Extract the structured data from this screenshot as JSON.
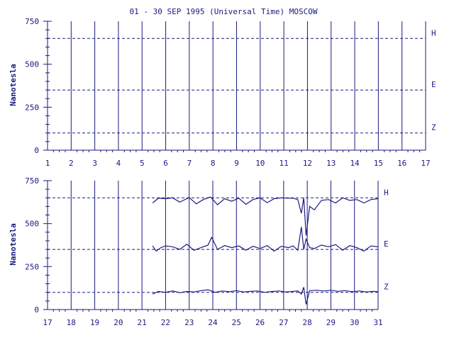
{
  "chart_data": [
    {
      "type": "line",
      "title": "01 - 30 SEP 1995 (Universal Time) MOSCOW",
      "ylabel": "Nanotesla",
      "x_ticks": [
        "1",
        "2",
        "3",
        "4",
        "5",
        "6",
        "7",
        "8",
        "9",
        "10",
        "11",
        "12",
        "13",
        "14",
        "15",
        "16",
        "17"
      ],
      "xlim": [
        1,
        17
      ],
      "y_ticks": [
        "0",
        "250",
        "500",
        "750"
      ],
      "ylim": [
        0,
        750
      ],
      "reference_lines": [
        {
          "name": "H",
          "value": 650
        },
        {
          "name": "E",
          "value": 350
        },
        {
          "name": "Z",
          "value": 100
        }
      ],
      "series": []
    },
    {
      "type": "line",
      "ylabel": "Nanotesla",
      "x_ticks": [
        "17",
        "18",
        "19",
        "20",
        "21",
        "22",
        "23",
        "24",
        "25",
        "26",
        "27",
        "28",
        "29",
        "30",
        "31"
      ],
      "xlim": [
        17,
        31
      ],
      "y_ticks": [
        "0",
        "250",
        "500",
        "750"
      ],
      "ylim": [
        0,
        750
      ],
      "reference_lines": [
        {
          "name": "H",
          "value": 650
        },
        {
          "name": "E",
          "value": 350
        },
        {
          "name": "Z",
          "value": 100
        }
      ],
      "series": [
        {
          "name": "H",
          "x": [
            21.45,
            21.7,
            22.0,
            22.3,
            22.6,
            23.0,
            23.3,
            23.6,
            23.9,
            24.2,
            24.5,
            24.8,
            25.1,
            25.4,
            25.7,
            26.0,
            26.3,
            26.6,
            26.9,
            27.2,
            27.4,
            27.6,
            27.75,
            27.85,
            27.95,
            28.1,
            28.3,
            28.6,
            28.9,
            29.2,
            29.5,
            29.8,
            30.1,
            30.4,
            30.7,
            31.0
          ],
          "y": [
            620,
            648,
            645,
            650,
            625,
            652,
            615,
            640,
            655,
            610,
            645,
            630,
            648,
            612,
            640,
            650,
            622,
            645,
            650,
            648,
            648,
            640,
            560,
            650,
            430,
            600,
            580,
            635,
            640,
            620,
            650,
            635,
            640,
            620,
            640,
            645
          ]
        },
        {
          "name": "E",
          "x": [
            21.45,
            21.6,
            21.8,
            22.0,
            22.3,
            22.6,
            22.9,
            23.2,
            23.5,
            23.8,
            23.95,
            24.2,
            24.5,
            24.8,
            25.1,
            25.4,
            25.7,
            26.0,
            26.3,
            26.6,
            26.9,
            27.2,
            27.4,
            27.6,
            27.75,
            27.85,
            27.95,
            28.1,
            28.3,
            28.6,
            28.9,
            29.2,
            29.5,
            29.8,
            30.1,
            30.4,
            30.7,
            31.0
          ],
          "y": [
            370,
            340,
            360,
            370,
            365,
            350,
            380,
            345,
            360,
            375,
            420,
            350,
            372,
            360,
            370,
            345,
            368,
            355,
            372,
            340,
            368,
            360,
            370,
            345,
            480,
            350,
            410,
            360,
            355,
            375,
            365,
            378,
            345,
            372,
            360,
            340,
            370,
            365
          ]
        },
        {
          "name": "Z",
          "x": [
            21.45,
            21.7,
            22.0,
            22.3,
            22.6,
            22.9,
            23.2,
            23.5,
            23.8,
            24.1,
            24.4,
            24.7,
            25.0,
            25.3,
            25.6,
            25.9,
            26.2,
            26.5,
            26.8,
            27.1,
            27.4,
            27.6,
            27.75,
            27.85,
            27.95,
            28.1,
            28.4,
            28.7,
            29.0,
            29.3,
            29.6,
            29.9,
            30.2,
            30.5,
            30.8,
            31.0
          ],
          "y": [
            90,
            105,
            100,
            108,
            98,
            105,
            102,
            110,
            115,
            100,
            108,
            104,
            110,
            102,
            106,
            108,
            100,
            105,
            108,
            102,
            106,
            108,
            90,
            130,
            30,
            110,
            112,
            108,
            112,
            106,
            110,
            104,
            108,
            102,
            106,
            104
          ]
        }
      ]
    }
  ],
  "labels": {
    "ylabel_top": "Nanotesla",
    "ylabel_bottom": "Nanotesla"
  }
}
